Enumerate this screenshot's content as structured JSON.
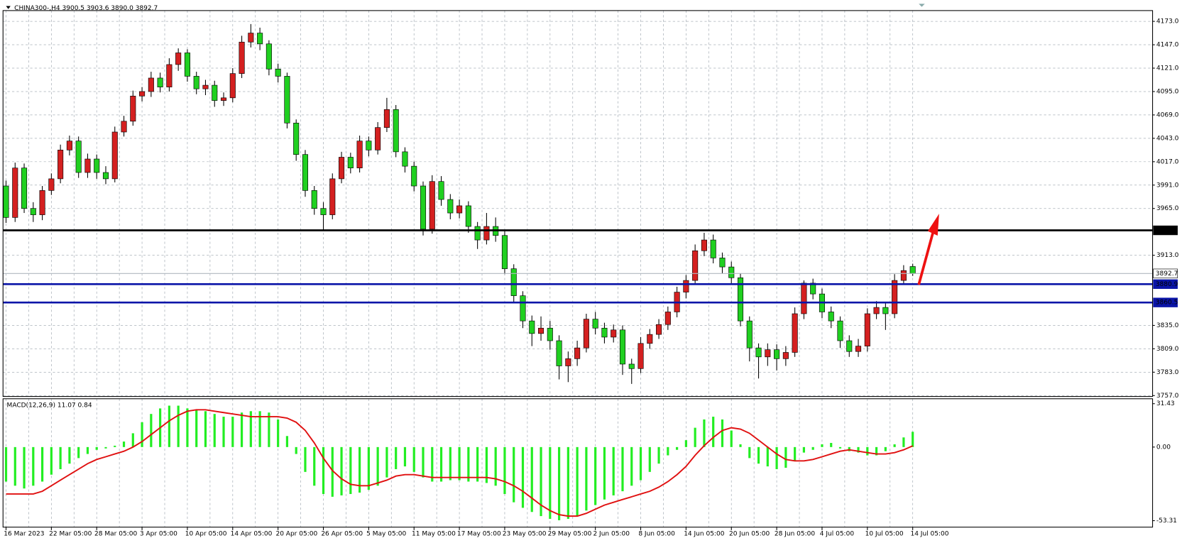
{
  "chart_data": [
    {
      "type": "candlestick",
      "title": "CHINA300-,H4",
      "header_values": [
        "3900.5",
        "3903.6",
        "3890.0",
        "3892.7"
      ],
      "categories": [
        "16 Mar 2023",
        null,
        null,
        null,
        null,
        "22 Mar 05:00",
        null,
        null,
        null,
        null,
        "28 Mar 05:00",
        null,
        null,
        null,
        null,
        "3 Apr 05:00",
        null,
        null,
        null,
        null,
        "10 Apr 05:00",
        null,
        null,
        null,
        null,
        "14 Apr 05:00",
        null,
        null,
        null,
        null,
        "20 Apr 05:00",
        null,
        null,
        null,
        null,
        "26 Apr 05:00",
        null,
        null,
        null,
        null,
        "5 May 05:00",
        null,
        null,
        null,
        null,
        "11 May 05:00",
        null,
        null,
        null,
        null,
        "17 May 05:00",
        null,
        null,
        null,
        null,
        "23 May 05:00",
        null,
        null,
        null,
        null,
        "29 May 05:00",
        null,
        null,
        null,
        null,
        "2 Jun 05:00",
        null,
        null,
        null,
        null,
        "8 Jun 05:00",
        null,
        null,
        null,
        null,
        "14 Jun 05:00",
        null,
        null,
        null,
        null,
        "20 Jun 05:00",
        null,
        null,
        null,
        null,
        "28 Jun 05:00",
        null,
        null,
        null,
        null,
        "4 Jul 05:00",
        null,
        null,
        null,
        null,
        "10 Jul 05:00",
        null,
        null,
        null,
        null,
        "14 Jul 05:00"
      ],
      "ohlc": [
        [
          3990,
          3996,
          3949,
          3955
        ],
        [
          3955,
          4016,
          3950,
          4010
        ],
        [
          4010,
          4015,
          3960,
          3965
        ],
        [
          3965,
          3972,
          3950,
          3958
        ],
        [
          3958,
          3990,
          3952,
          3985
        ],
        [
          3985,
          4004,
          3980,
          3998
        ],
        [
          3998,
          4036,
          3993,
          4030
        ],
        [
          4030,
          4046,
          4024,
          4040
        ],
        [
          4040,
          4045,
          3999,
          4005
        ],
        [
          4005,
          4026,
          3999,
          4020
        ],
        [
          4020,
          4025,
          3998,
          4005
        ],
        [
          4005,
          4012,
          3992,
          3998
        ],
        [
          3998,
          4056,
          3994,
          4050
        ],
        [
          4050,
          4068,
          4045,
          4062
        ],
        [
          4062,
          4096,
          4057,
          4090
        ],
        [
          4090,
          4100,
          4084,
          4095
        ],
        [
          4095,
          4117,
          4089,
          4110
        ],
        [
          4110,
          4116,
          4094,
          4100
        ],
        [
          4100,
          4132,
          4095,
          4125
        ],
        [
          4125,
          4143,
          4118,
          4138
        ],
        [
          4138,
          4142,
          4106,
          4112
        ],
        [
          4112,
          4117,
          4092,
          4098
        ],
        [
          4098,
          4108,
          4091,
          4102
        ],
        [
          4102,
          4107,
          4078,
          4085
        ],
        [
          4085,
          4094,
          4079,
          4088
        ],
        [
          4088,
          4121,
          4083,
          4115
        ],
        [
          4115,
          4157,
          4110,
          4150
        ],
        [
          4150,
          4170,
          4144,
          4160
        ],
        [
          4160,
          4166,
          4141,
          4148
        ],
        [
          4148,
          4152,
          4113,
          4120
        ],
        [
          4120,
          4126,
          4105,
          4112
        ],
        [
          4112,
          4116,
          4054,
          4060
        ],
        [
          4060,
          4064,
          4018,
          4025
        ],
        [
          4025,
          4030,
          3978,
          3985
        ],
        [
          3985,
          3990,
          3958,
          3965
        ],
        [
          3965,
          3972,
          3940,
          3958
        ],
        [
          3958,
          4004,
          3953,
          3998
        ],
        [
          3998,
          4028,
          3993,
          4022
        ],
        [
          4022,
          4027,
          4004,
          4010
        ],
        [
          4010,
          4046,
          4005,
          4040
        ],
        [
          4040,
          4045,
          4023,
          4030
        ],
        [
          4030,
          4061,
          4025,
          4055
        ],
        [
          4055,
          4088,
          4050,
          4075
        ],
        [
          4075,
          4080,
          4022,
          4028
        ],
        [
          4028,
          4033,
          4005,
          4012
        ],
        [
          4012,
          4017,
          3984,
          3990
        ],
        [
          3990,
          3995,
          3935,
          3942
        ],
        [
          3942,
          4002,
          3937,
          3995
        ],
        [
          3995,
          4001,
          3968,
          3975
        ],
        [
          3975,
          3981,
          3953,
          3960
        ],
        [
          3960,
          3975,
          3954,
          3968
        ],
        [
          3968,
          3973,
          3938,
          3945
        ],
        [
          3945,
          3950,
          3920,
          3930
        ],
        [
          3930,
          3960,
          3925,
          3945
        ],
        [
          3945,
          3955,
          3928,
          3935
        ],
        [
          3935,
          3940,
          3892,
          3898
        ],
        [
          3898,
          3903,
          3860,
          3868
        ],
        [
          3868,
          3873,
          3832,
          3840
        ],
        [
          3840,
          3846,
          3812,
          3826
        ],
        [
          3826,
          3845,
          3818,
          3832
        ],
        [
          3832,
          3840,
          3808,
          3818
        ],
        [
          3818,
          3824,
          3775,
          3790
        ],
        [
          3790,
          3806,
          3772,
          3798
        ],
        [
          3798,
          3818,
          3790,
          3810
        ],
        [
          3810,
          3848,
          3805,
          3842
        ],
        [
          3842,
          3850,
          3825,
          3832
        ],
        [
          3832,
          3838,
          3815,
          3822
        ],
        [
          3822,
          3836,
          3816,
          3830
        ],
        [
          3830,
          3835,
          3780,
          3792
        ],
        [
          3792,
          3798,
          3770,
          3787
        ],
        [
          3787,
          3822,
          3782,
          3815
        ],
        [
          3815,
          3831,
          3809,
          3825
        ],
        [
          3825,
          3842,
          3820,
          3836
        ],
        [
          3836,
          3856,
          3830,
          3850
        ],
        [
          3850,
          3878,
          3844,
          3872
        ],
        [
          3872,
          3891,
          3865,
          3885
        ],
        [
          3885,
          3925,
          3880,
          3918
        ],
        [
          3918,
          3938,
          3912,
          3930
        ],
        [
          3930,
          3936,
          3904,
          3910
        ],
        [
          3910,
          3916,
          3893,
          3900
        ],
        [
          3900,
          3906,
          3880,
          3888
        ],
        [
          3888,
          3893,
          3834,
          3840
        ],
        [
          3840,
          3845,
          3795,
          3810
        ],
        [
          3810,
          3815,
          3776,
          3800
        ],
        [
          3800,
          3815,
          3790,
          3808
        ],
        [
          3808,
          3814,
          3785,
          3798
        ],
        [
          3798,
          3812,
          3790,
          3805
        ],
        [
          3805,
          3855,
          3800,
          3848
        ],
        [
          3848,
          3885,
          3842,
          3882
        ],
        [
          3882,
          3887,
          3864,
          3870
        ],
        [
          3870,
          3876,
          3843,
          3850
        ],
        [
          3850,
          3856,
          3832,
          3840
        ],
        [
          3840,
          3845,
          3810,
          3818
        ],
        [
          3818,
          3824,
          3800,
          3806
        ],
        [
          3806,
          3820,
          3800,
          3812
        ],
        [
          3812,
          3854,
          3806,
          3848
        ],
        [
          3848,
          3862,
          3842,
          3855
        ],
        [
          3855,
          3860,
          3830,
          3848
        ],
        [
          3848,
          3892,
          3843,
          3885
        ],
        [
          3885,
          3902,
          3880,
          3896
        ],
        [
          3900.5,
          3903.6,
          3890,
          3892.7
        ]
      ],
      "up_color": "#d42020",
      "down_color": "#20d020",
      "ylim": [
        3756,
        4185
      ],
      "yticks": [
        {
          "value": 4173,
          "label": "4173.0"
        },
        {
          "value": 4147,
          "label": "4147.0"
        },
        {
          "value": 4121,
          "label": "4121.0"
        },
        {
          "value": 4095,
          "label": "4095.0"
        },
        {
          "value": 4069,
          "label": "4069.0"
        },
        {
          "value": 4043,
          "label": "4043.0"
        },
        {
          "value": 4017,
          "label": "4017.0"
        },
        {
          "value": 3991,
          "label": "3991.0"
        },
        {
          "value": 3965,
          "label": "3965.0"
        },
        {
          "value": 3913,
          "label": "3913.0"
        },
        {
          "value": 3835,
          "label": "3835.0"
        },
        {
          "value": 3809,
          "label": "3809.0"
        },
        {
          "value": 3783,
          "label": "3783.0"
        },
        {
          "value": 3757,
          "label": "3757.0"
        }
      ],
      "hlines": [
        {
          "value": 3940.7,
          "color": "#000000",
          "width": 2.5
        },
        {
          "value": 3892.7,
          "color": "#b0b8c0",
          "width": 1
        },
        {
          "value": 3880.9,
          "color": "#0a14a8",
          "width": 2.5
        },
        {
          "value": 3860.5,
          "color": "#0a14a8",
          "width": 2.5
        }
      ],
      "grid": true
    },
    {
      "type": "macd",
      "title": "MACD(12,26,9)",
      "series": [
        {
          "kind": "bar",
          "color": "#22ee22",
          "values": [
            -25,
            -28,
            -30,
            -28,
            -25,
            -20,
            -16,
            -12,
            -8,
            -5,
            -2,
            -1,
            1,
            4,
            10,
            18,
            24,
            28,
            30,
            30,
            28,
            27,
            26,
            24,
            22,
            22,
            25,
            26,
            26,
            25,
            20,
            8,
            -5,
            -18,
            -28,
            -34,
            -36,
            -35,
            -34,
            -33,
            -31,
            -28,
            -22,
            -16,
            -14,
            -18,
            -22,
            -25,
            -25,
            -24,
            -24,
            -25,
            -25,
            -26,
            -28,
            -34,
            -40,
            -44,
            -47,
            -50,
            -52,
            -53,
            -52,
            -50,
            -46,
            -42,
            -38,
            -35,
            -32,
            -28,
            -24,
            -18,
            -12,
            -6,
            -2,
            5,
            14,
            20,
            22,
            20,
            12,
            2,
            -8,
            -12,
            -14,
            -16,
            -15,
            -10,
            -4,
            -2,
            2,
            3,
            -1,
            -3,
            -4,
            -6,
            -6,
            -3,
            2,
            7,
            11.07
          ]
        },
        {
          "kind": "line",
          "color": "#e01010",
          "values": [
            -34,
            -34,
            -34,
            -34,
            -32,
            -28,
            -24,
            -20,
            -16,
            -12,
            -9,
            -7,
            -5,
            -3,
            0,
            4,
            9,
            14,
            19,
            23,
            26,
            27,
            27,
            26,
            25,
            24,
            23,
            22,
            22,
            22,
            22,
            21,
            18,
            12,
            3,
            -8,
            -17,
            -23,
            -27,
            -28,
            -28,
            -26,
            -24,
            -21,
            -20,
            -20,
            -21,
            -22,
            -22,
            -22,
            -22,
            -22,
            -22,
            -22,
            -23,
            -25,
            -28,
            -32,
            -37,
            -42,
            -46,
            -49,
            -50,
            -50,
            -48,
            -45,
            -42,
            -40,
            -38,
            -36,
            -34,
            -32,
            -29,
            -25,
            -20,
            -14,
            -6,
            1,
            7,
            12,
            14,
            13,
            10,
            5,
            0,
            -5,
            -9,
            -10,
            -10,
            -9,
            -7,
            -5,
            -3,
            -2,
            -3,
            -4,
            -5,
            -5,
            -4,
            -2,
            0.84
          ]
        }
      ],
      "ylim": [
        -58,
        35
      ],
      "yticks": [
        31.43,
        {
          "value": 0,
          "label": "0.00"
        },
        -53.31
      ]
    }
  ]
}
